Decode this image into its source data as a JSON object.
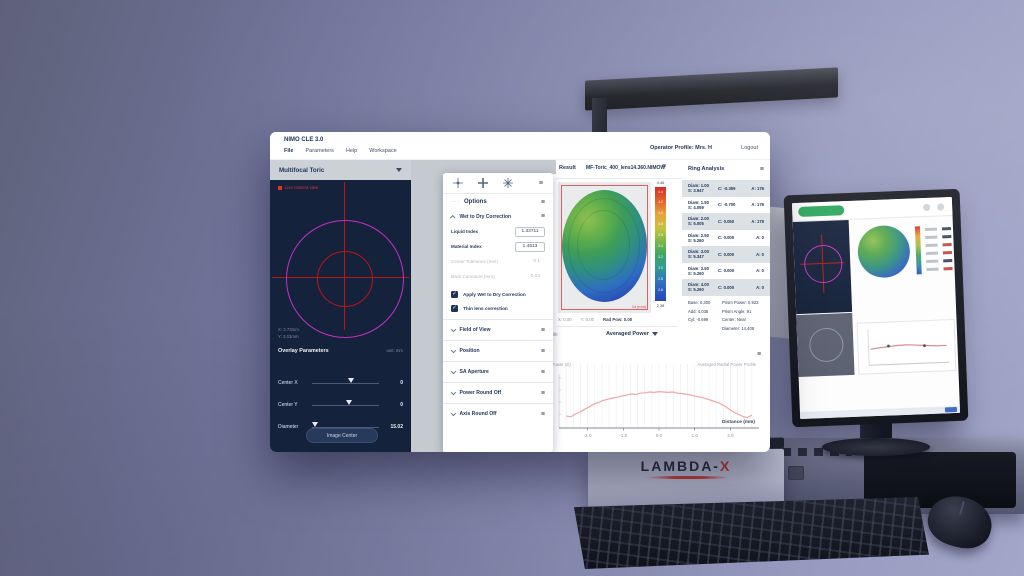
{
  "window": {
    "title": "NIMO CLE 3.0",
    "menu": [
      "File",
      "Parameters",
      "Help",
      "Workspace"
    ],
    "operator_profile": "Operator Profile: Mrs. H",
    "logout_label": "Logout"
  },
  "left_panel": {
    "lens_type_selected": "Multifocal Toric",
    "camera_overlay_label": "Live camera view",
    "cursor_x": "X: 3.73mm",
    "cursor_y": "Y: 3.03mm",
    "overlay_title": "Overlay Parameters",
    "overlay_unit": "unit: mm",
    "sliders": [
      {
        "label": "Center X",
        "value": "0",
        "position_pct": 58
      },
      {
        "label": "Center Y",
        "value": "0",
        "position_pct": 55
      },
      {
        "label": "Diameter",
        "value": "15.02",
        "position_pct": 5
      }
    ],
    "image_center_button": "Image Center"
  },
  "options_panel": {
    "title": "Options",
    "wet_to_dry": {
      "title": "Wet to Dry Correction",
      "fields": [
        {
          "label": "Liquid Index",
          "value": "1.33711",
          "enabled": true
        },
        {
          "label": "Material Index",
          "value": "1.4513",
          "enabled": true
        },
        {
          "label": "Center Tolerance (mm)",
          "value": "0.1",
          "enabled": false
        },
        {
          "label": "Back Curvature (mm)",
          "value": "0.03",
          "enabled": false
        }
      ],
      "checkboxes": [
        {
          "label": "Apply Wet to Dry Correction",
          "checked": true
        },
        {
          "label": "Thin lens correction",
          "checked": true
        }
      ]
    },
    "collapsed_sections": [
      "Field of View",
      "Position",
      "SA Aperture",
      "Power Round Off",
      "Axis Round Off"
    ]
  },
  "result_panel": {
    "result_label": "Result",
    "filename": "MF-Toric_400_lens14.360.NIMOW",
    "map_dimension_label": "14 (mm)",
    "colorbar": {
      "max_label": "4.46",
      "min_label": "2.38",
      "ticks": [
        "4.4",
        "4.2",
        "4.0",
        "3.8",
        "3.6",
        "3.4",
        "3.2",
        "3.0",
        "2.8",
        "2.6"
      ]
    },
    "readout": [
      "X: 0.00",
      "Y: 0.00",
      "Rad Pow: 0.00"
    ],
    "profile_row_label": "Power Profile",
    "profile_selected": "Averaged Power"
  },
  "ring_analysis": {
    "title": "Ring Analysis",
    "rows": [
      {
        "diam": "Diam: 1.00",
        "s": "S: 3.947",
        "c": "C: -0.359",
        "a": "A: 176"
      },
      {
        "diam": "Diam: 1.50",
        "s": "S: 4.059",
        "c": "C: -0.700",
        "a": "A: 176"
      },
      {
        "diam": "Diam: 2.00",
        "s": "S: 5.005",
        "c": "C: 0.050",
        "a": "A: 179"
      },
      {
        "diam": "Diam: 2.50",
        "s": "S: 5.260",
        "c": "C: 0.000",
        "a": "A: 0"
      },
      {
        "diam": "Diam: 3.00",
        "s": "S: 5.347",
        "c": "C: 0.000",
        "a": "A: 0"
      },
      {
        "diam": "Diam: 3.50",
        "s": "S: 5.260",
        "c": "C: 0.000",
        "a": "A: 0"
      },
      {
        "diam": "Diam: 4.00",
        "s": "S: 5.260",
        "c": "C: 0.000",
        "a": "A: 0"
      }
    ],
    "summary_left": [
      "Base: 0.300",
      "Add: 4.035",
      "Cyl: -0.699"
    ],
    "summary_right": [
      "Prism Power: 0.922",
      "Prism Angle: 91",
      "Center: Near",
      "Diameter: 14.408"
    ]
  },
  "chart_data": {
    "type": "line",
    "title": "Averaged Radial Power Profile",
    "xlabel": "Distance (mm)",
    "ylabel": "Averaged Power (D)",
    "xlim": [
      -2.8,
      2.8
    ],
    "ylim": [
      3.2,
      4.6
    ],
    "xticks": [
      "-2.0",
      "-1.0",
      "0.0",
      "1.0",
      "2.0"
    ],
    "grid": "vertical-light",
    "line_color": "#f0a6a6",
    "x": [
      -2.6,
      -2.47,
      -2.34,
      -2.21,
      -2.08,
      -1.95,
      -1.82,
      -1.69,
      -1.56,
      -1.43,
      -1.3,
      -1.17,
      -1.04,
      -0.91,
      -0.78,
      -0.65,
      -0.52,
      -0.39,
      -0.26,
      -0.13,
      0,
      0.13,
      0.26,
      0.39,
      0.52,
      0.65,
      0.78,
      0.91,
      1.04,
      1.17,
      1.3,
      1.43,
      1.56,
      1.69,
      1.82,
      1.95,
      2.08,
      2.21,
      2.34,
      2.47,
      2.6
    ],
    "y": [
      3.5,
      3.48,
      3.55,
      3.6,
      3.67,
      3.73,
      3.8,
      3.84,
      3.89,
      3.92,
      3.95,
      3.97,
      4.0,
      4.02,
      4.05,
      4.04,
      4.07,
      4.08,
      4.1,
      4.09,
      4.11,
      4.1,
      4.09,
      4.1,
      4.07,
      4.06,
      4.04,
      4.02,
      3.99,
      3.97,
      3.94,
      3.9,
      3.86,
      3.82,
      3.76,
      3.68,
      3.6,
      3.55,
      3.49,
      3.46,
      3.52
    ]
  },
  "branding": {
    "device_logo_prefix": "LAMBDA-",
    "device_logo_x": "X"
  },
  "icons": {
    "hamburger": "≡",
    "caret_down": "▼",
    "check": "✓",
    "toolbar_icons": [
      "crosshair-dot-icon",
      "crosshair-plus-icon",
      "starburst-icon"
    ]
  },
  "colors": {
    "accent_navy": "#22365c",
    "crosshair_red": "#c01414",
    "overlay_magenta": "#c42fc4",
    "chart_line_pink": "#f0a6a6",
    "lambda_red": "#c43a30",
    "background_purple": "#8185ab"
  }
}
